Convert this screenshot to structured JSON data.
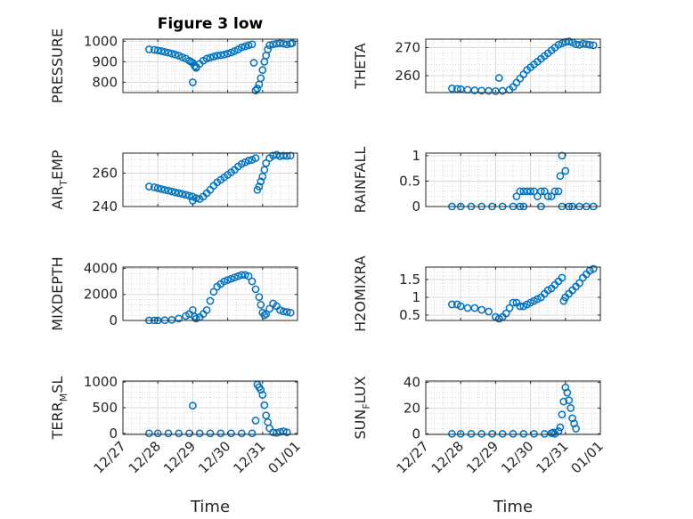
{
  "chart_data": [
    {
      "type": "scatter",
      "title": "Figure 3 low",
      "ylabel": "PRESSURE",
      "ylim": [
        750,
        1010
      ],
      "yticks": [
        800,
        900,
        1000
      ],
      "grid": true,
      "series": [
        {
          "x": [
            1.75,
            1.9,
            2.0,
            2.1,
            2.2,
            2.3,
            2.4,
            2.5,
            2.6,
            2.7,
            2.8,
            2.9,
            2.95,
            3.0,
            3.05,
            3.1,
            3.2,
            3.3,
            3.4,
            3.5,
            3.6,
            3.7,
            3.8,
            3.9,
            4.0,
            4.1,
            4.2,
            4.3,
            4.4,
            4.5,
            4.6,
            4.7,
            4.75,
            4.8,
            4.85,
            4.9,
            4.95,
            5.0,
            5.05,
            5.1,
            5.15,
            5.2,
            5.3,
            5.4,
            5.5,
            5.6,
            5.7,
            5.8,
            5.85
          ],
          "y": [
            960,
            958,
            955,
            952,
            948,
            944,
            940,
            935,
            930,
            922,
            915,
            905,
            900,
            895,
            880,
            875,
            890,
            905,
            915,
            920,
            925,
            930,
            932,
            935,
            940,
            945,
            952,
            960,
            970,
            975,
            980,
            985,
            895,
            760,
            770,
            790,
            820,
            860,
            900,
            930,
            960,
            980,
            985,
            988,
            990,
            988,
            985,
            988,
            990
          ]
        },
        {
          "x": [
            3.0,
            3.1
          ],
          "y": [
            800,
            870
          ]
        }
      ]
    },
    {
      "type": "scatter",
      "ylabel": "THETA",
      "ylim": [
        254,
        273
      ],
      "yticks": [
        260,
        270
      ],
      "grid": true,
      "series": [
        {
          "x": [
            1.75,
            1.9,
            2.0,
            2.2,
            2.4,
            2.6,
            2.8,
            3.0,
            3.2,
            3.4,
            3.5,
            3.6,
            3.7,
            3.8,
            3.9,
            4.0,
            4.1,
            4.2,
            4.3,
            4.4,
            4.5,
            4.6,
            4.7,
            4.8,
            4.9,
            5.0,
            5.1,
            5.2,
            5.3,
            5.4,
            5.5,
            5.6,
            5.7,
            5.8
          ],
          "y": [
            255.5,
            255.3,
            255.2,
            255.0,
            254.8,
            254.7,
            254.6,
            254.5,
            254.6,
            255,
            256,
            257.5,
            259,
            260.5,
            262,
            263,
            264,
            265,
            266,
            267,
            268,
            269,
            270,
            271,
            271.5,
            272,
            272.2,
            271.8,
            271.2,
            271.0,
            271.4,
            271.2,
            271.0,
            270.8
          ]
        },
        {
          "x": [
            3.1
          ],
          "y": [
            259.2
          ]
        }
      ]
    },
    {
      "type": "scatter",
      "ylabel": "AIR_TEMP",
      "ylim": [
        240,
        272
      ],
      "yticks": [
        240,
        260
      ],
      "grid": true,
      "series": [
        {
          "x": [
            1.75,
            1.9,
            2.0,
            2.1,
            2.2,
            2.3,
            2.4,
            2.5,
            2.6,
            2.7,
            2.8,
            2.9,
            3.0,
            3.1,
            3.2,
            3.3,
            3.4,
            3.5,
            3.6,
            3.7,
            3.8,
            3.9,
            4.0,
            4.1,
            4.2,
            4.3,
            4.4,
            4.5,
            4.6,
            4.7,
            4.8,
            4.85,
            4.9,
            4.95,
            5.0,
            5.05,
            5.1,
            5.2,
            5.3,
            5.4,
            5.5,
            5.6,
            5.7,
            5.8
          ],
          "y": [
            252,
            251.5,
            251,
            250.5,
            250,
            249.5,
            249,
            248.5,
            248,
            247.5,
            247,
            246.5,
            246,
            245,
            244.5,
            246,
            248,
            250,
            252.5,
            254.5,
            256,
            257.5,
            259,
            260.5,
            262,
            264,
            265.5,
            266.5,
            267.5,
            268,
            269,
            250,
            252,
            255,
            258,
            262,
            266,
            269,
            270.5,
            271,
            270.2,
            270.5,
            270.3,
            270.5
          ]
        },
        {
          "x": [
            3.0
          ],
          "y": [
            243.5
          ]
        }
      ]
    },
    {
      "type": "scatter",
      "ylabel": "RAINFALL",
      "ylim": [
        0,
        1.05
      ],
      "yticks": [
        0,
        0.5,
        1
      ],
      "grid": true,
      "series": [
        {
          "x": [
            1.75,
            2.0,
            2.3,
            2.6,
            2.9,
            3.2,
            3.5,
            3.6,
            3.7,
            3.8,
            3.9,
            4.0,
            4.1,
            4.2,
            4.3,
            4.4,
            4.5,
            4.6,
            4.7,
            4.8,
            4.85,
            4.9,
            5.0,
            5.1,
            5.2,
            5.4,
            5.6,
            5.8,
            3.7,
            3.8,
            4.3,
            4.9
          ],
          "y": [
            0,
            0,
            0,
            0,
            0,
            0,
            0,
            0.2,
            0.3,
            0.3,
            0.3,
            0.3,
            0.3,
            0.2,
            0.3,
            0.3,
            0.2,
            0.2,
            0.3,
            0.3,
            0.6,
            1.0,
            0.7,
            0,
            0,
            0,
            0,
            0,
            0,
            0,
            0,
            0
          ]
        }
      ]
    },
    {
      "type": "scatter",
      "ylabel": "MIXDEPTH",
      "ylim": [
        0,
        4100
      ],
      "yticks": [
        0,
        2000,
        4000
      ],
      "grid": true,
      "series": [
        {
          "x": [
            1.75,
            1.9,
            2.0,
            2.2,
            2.4,
            2.6,
            2.8,
            2.9,
            3.0,
            3.05,
            3.1,
            3.2,
            3.3,
            3.4,
            3.5,
            3.6,
            3.7,
            3.8,
            3.9,
            4.0,
            4.1,
            4.2,
            4.3,
            4.4,
            4.5,
            4.6,
            4.7,
            4.8,
            4.9,
            4.95,
            5.0,
            5.05,
            5.1,
            5.2,
            5.3,
            5.4,
            5.5,
            5.6,
            5.7,
            5.8
          ],
          "y": [
            0,
            0,
            0,
            20,
            50,
            150,
            350,
            500,
            800,
            300,
            150,
            250,
            500,
            800,
            1500,
            2200,
            2600,
            2800,
            3000,
            3100,
            3200,
            3300,
            3400,
            3500,
            3500,
            3400,
            3000,
            2400,
            1800,
            1200,
            600,
            400,
            500,
            900,
            1300,
            1100,
            800,
            700,
            650,
            600
          ]
        }
      ]
    },
    {
      "type": "scatter",
      "ylabel": "H2OMIXRA",
      "ylim": [
        0.35,
        1.85
      ],
      "yticks": [
        0.5,
        1,
        1.5
      ],
      "grid": true,
      "series": [
        {
          "x": [
            1.75,
            1.9,
            2.0,
            2.2,
            2.4,
            2.6,
            2.8,
            3.0,
            3.1,
            3.2,
            3.3,
            3.4,
            3.5,
            3.6,
            3.7,
            3.8,
            3.9,
            4.0,
            4.1,
            4.2,
            4.3,
            4.4,
            4.5,
            4.6,
            4.7,
            4.8,
            4.9,
            4.95,
            5.0,
            5.1,
            5.2,
            5.3,
            5.4,
            5.5,
            5.6,
            5.7,
            5.8
          ],
          "y": [
            0.8,
            0.8,
            0.75,
            0.7,
            0.7,
            0.65,
            0.6,
            0.45,
            0.4,
            0.45,
            0.55,
            0.7,
            0.85,
            0.85,
            0.75,
            0.75,
            0.8,
            0.85,
            0.9,
            0.95,
            1.0,
            1.1,
            1.2,
            1.25,
            1.35,
            1.45,
            1.55,
            0.9,
            1.0,
            1.1,
            1.2,
            1.3,
            1.4,
            1.55,
            1.65,
            1.75,
            1.8
          ]
        }
      ]
    },
    {
      "type": "scatter",
      "ylabel": "TERR_MSL",
      "ylim": [
        -20,
        1020
      ],
      "yticks": [
        0,
        500,
        1000
      ],
      "grid": true,
      "series": [
        {
          "x": [
            1.75,
            2.0,
            2.3,
            2.6,
            2.9,
            3.2,
            3.5,
            3.8,
            4.1,
            4.4,
            4.7,
            4.8,
            4.85,
            4.9,
            4.95,
            5.0,
            5.05,
            5.1,
            5.15,
            5.2,
            5.3,
            5.4,
            5.5,
            5.6,
            5.7
          ],
          "y": [
            0,
            0,
            0,
            0,
            0,
            0,
            0,
            0,
            0,
            0,
            0,
            250,
            950,
            900,
            850,
            750,
            550,
            350,
            220,
            100,
            20,
            10,
            30,
            40,
            20
          ]
        },
        {
          "x": [
            3.0
          ],
          "y": [
            540
          ]
        }
      ]
    },
    {
      "type": "scatter",
      "ylabel": "SUN_FLUX",
      "ylim": [
        -0.5,
        41
      ],
      "yticks": [
        0,
        20,
        40
      ],
      "grid": true,
      "series": [
        {
          "x": [
            1.75,
            2.0,
            2.3,
            2.6,
            2.9,
            3.2,
            3.5,
            3.8,
            4.1,
            4.4,
            4.6,
            4.65,
            4.7,
            4.8,
            4.85,
            4.9,
            4.95,
            5.0,
            5.05,
            5.1,
            5.15,
            5.2,
            5.25,
            5.3
          ],
          "y": [
            0,
            0,
            0,
            0,
            0,
            0,
            0,
            0,
            0,
            0,
            0.5,
            1,
            0,
            2,
            5,
            15,
            25,
            36,
            32,
            26,
            20,
            12,
            8,
            4
          ]
        }
      ]
    }
  ],
  "xaxis": {
    "label": "Time",
    "ticks": [
      1,
      2,
      3,
      4,
      5,
      6
    ],
    "tick_labels": [
      "12/27",
      "12/28",
      "12/29",
      "12/30",
      "12/31",
      "01/01"
    ],
    "xlim": [
      1,
      6
    ]
  },
  "colors": {
    "marker": "#0072BD",
    "axis": "#262626",
    "grid": "#d9d9d9"
  }
}
